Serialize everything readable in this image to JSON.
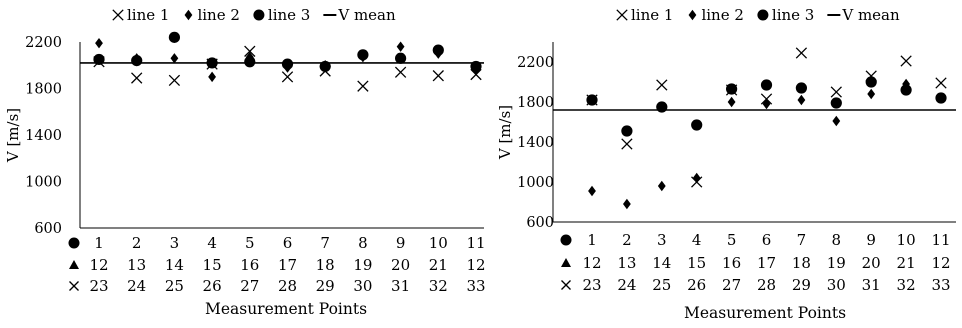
{
  "chart_data": [
    {
      "type": "scatter",
      "title": "",
      "xlabel": "Measurement Points",
      "ylabel": "V [m/s]",
      "ylim": [
        600,
        2200
      ],
      "yticks": [
        600,
        1000,
        1400,
        1800,
        2200
      ],
      "grid": false,
      "legend_position": "top",
      "x": [
        1,
        2,
        3,
        4,
        5,
        6,
        7,
        8,
        9,
        10,
        11
      ],
      "x_rows": [
        {
          "marker": "●",
          "labels": [
            "1",
            "2",
            "3",
            "4",
            "5",
            "6",
            "7",
            "8",
            "9",
            "10",
            "11"
          ]
        },
        {
          "marker": "▲",
          "labels": [
            "12",
            "13",
            "14",
            "15",
            "16",
            "17",
            "18",
            "19",
            "20",
            "21",
            "12"
          ]
        },
        {
          "marker": "×",
          "labels": [
            "23",
            "24",
            "25",
            "26",
            "27",
            "28",
            "29",
            "30",
            "31",
            "32",
            "33"
          ]
        }
      ],
      "series": [
        {
          "name": "line 1",
          "marker": "×",
          "values": [
            2030,
            1890,
            1870,
            2010,
            2120,
            1900,
            1950,
            1820,
            1940,
            1910,
            1920
          ]
        },
        {
          "name": "line 2",
          "marker": "◆",
          "values": [
            2190,
            2060,
            2060,
            1900,
            2070,
            1980,
            2000,
            2070,
            2160,
            2100,
            1960
          ]
        },
        {
          "name": "line 3",
          "marker": "●",
          "values": [
            2050,
            2040,
            2240,
            2020,
            2030,
            2010,
            1990,
            2090,
            2060,
            2130,
            1990
          ]
        },
        {
          "name": "V mean",
          "type": "hline",
          "value": 2020
        }
      ]
    },
    {
      "type": "scatter",
      "title": "",
      "xlabel": "Measurement Points",
      "ylabel": "V [m/s]",
      "ylim": [
        600,
        2400
      ],
      "yticks": [
        600,
        1000,
        1400,
        1800,
        2200
      ],
      "grid": false,
      "legend_position": "top",
      "x": [
        1,
        2,
        3,
        4,
        5,
        6,
        7,
        8,
        9,
        10,
        11
      ],
      "x_rows": [
        {
          "marker": "●",
          "labels": [
            "1",
            "2",
            "3",
            "4",
            "5",
            "6",
            "7",
            "8",
            "9",
            "10",
            "11"
          ]
        },
        {
          "marker": "▲",
          "labels": [
            "12",
            "13",
            "14",
            "15",
            "16",
            "17",
            "18",
            "19",
            "20",
            "21",
            "12"
          ]
        },
        {
          "marker": "×",
          "labels": [
            "23",
            "24",
            "25",
            "26",
            "27",
            "28",
            "29",
            "30",
            "31",
            "32",
            "33"
          ]
        }
      ],
      "series": [
        {
          "name": "line 1",
          "marker": "×",
          "values": [
            1820,
            1380,
            1970,
            1000,
            1920,
            1830,
            2290,
            1900,
            2060,
            2210,
            1990
          ]
        },
        {
          "name": "line 2",
          "marker": "◆",
          "values": [
            910,
            780,
            960,
            1040,
            1800,
            1780,
            1820,
            1610,
            1880,
            1980,
            1840
          ]
        },
        {
          "name": "line 3",
          "marker": "●",
          "values": [
            1820,
            1510,
            1750,
            1570,
            1930,
            1970,
            1940,
            1790,
            2000,
            1920,
            1840
          ]
        },
        {
          "name": "V mean",
          "type": "hline",
          "value": 1720
        }
      ]
    }
  ]
}
